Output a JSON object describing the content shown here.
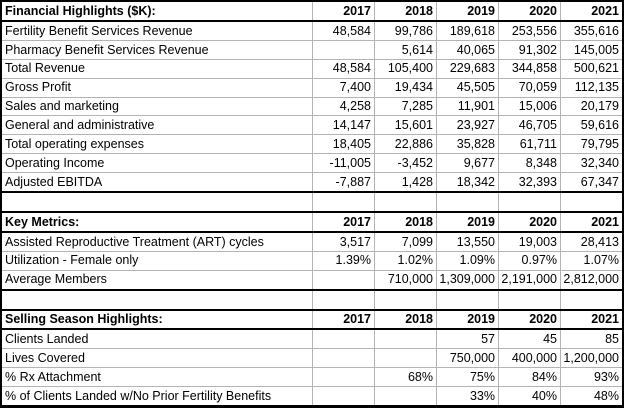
{
  "table": {
    "columns": [
      "2017",
      "2018",
      "2019",
      "2020",
      "2021"
    ],
    "sections": [
      {
        "title": "Financial Highlights ($K):",
        "rows": [
          {
            "label": "Fertility Benefit Services Revenue",
            "values": [
              "48,584",
              "99,786",
              "189,618",
              "253,556",
              "355,616"
            ]
          },
          {
            "label": "Pharmacy Benefit Services Revenue",
            "values": [
              "",
              "5,614",
              "40,065",
              "91,302",
              "145,005"
            ]
          },
          {
            "label": "Total Revenue",
            "values": [
              "48,584",
              "105,400",
              "229,683",
              "344,858",
              "500,621"
            ]
          },
          {
            "label": "Gross Profit",
            "values": [
              "7,400",
              "19,434",
              "45,505",
              "70,059",
              "112,135"
            ]
          },
          {
            "label": "Sales and marketing",
            "values": [
              "4,258",
              "7,285",
              "11,901",
              "15,006",
              "20,179"
            ]
          },
          {
            "label": "General and administrative",
            "values": [
              "14,147",
              "15,601",
              "23,927",
              "46,705",
              "59,616"
            ]
          },
          {
            "label": "Total operating expenses",
            "values": [
              "18,405",
              "22,886",
              "35,828",
              "61,711",
              "79,795"
            ]
          },
          {
            "label": "Operating Income",
            "values": [
              "-11,005",
              "-3,452",
              "9,677",
              "8,348",
              "32,340"
            ]
          },
          {
            "label": "Adjusted EBITDA",
            "values": [
              "-7,887",
              "1,428",
              "18,342",
              "32,393",
              "67,347"
            ]
          }
        ]
      },
      {
        "title": "Key Metrics:",
        "rows": [
          {
            "label": "Assisted Reproductive Treatment (ART) cycles",
            "values": [
              "3,517",
              "7,099",
              "13,550",
              "19,003",
              "28,413"
            ]
          },
          {
            "label": "Utilization - Female only",
            "values": [
              "1.39%",
              "1.02%",
              "1.09%",
              "0.97%",
              "1.07%"
            ]
          },
          {
            "label": "Average Members",
            "values": [
              "",
              "710,000",
              "1,309,000",
              "2,191,000",
              "2,812,000"
            ]
          }
        ]
      },
      {
        "title": "Selling Season Highlights:",
        "rows": [
          {
            "label": "Clients Landed",
            "values": [
              "",
              "",
              "57",
              "45",
              "85"
            ]
          },
          {
            "label": "Lives Covered",
            "values": [
              "",
              "",
              "750,000",
              "400,000",
              "1,200,000"
            ]
          },
          {
            "label": "% Rx Attachment",
            "values": [
              "",
              "68%",
              "75%",
              "84%",
              "93%"
            ]
          },
          {
            "label": "% of Clients Landed w/No Prior Fertility Benefits",
            "values": [
              "",
              "",
              "33%",
              "40%",
              "48%"
            ]
          }
        ]
      }
    ]
  },
  "colors": {
    "section_border": "#000000",
    "gridline": "#b3b3b3",
    "text": "#000000",
    "background": "#ffffff"
  }
}
